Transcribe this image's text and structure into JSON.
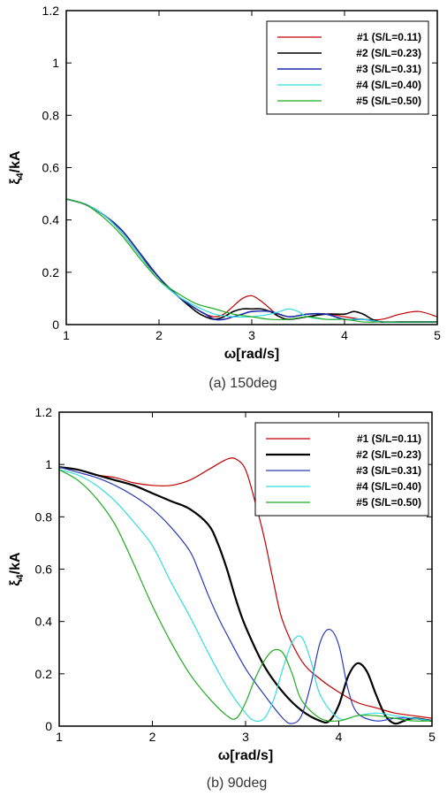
{
  "chart_data": [
    {
      "type": "line",
      "caption": "(a) 150deg",
      "xlabel": "ω[rad/s]",
      "ylabel": "ξ4/kA",
      "xlim": [
        1,
        5
      ],
      "ylim": [
        0,
        1.2
      ],
      "xticks": [
        "1",
        "2",
        "3",
        "4",
        "5"
      ],
      "yticks": [
        "0",
        "0.2",
        "0.4",
        "0.6",
        "0.8",
        "1",
        "1.2"
      ],
      "grid": false,
      "legend_position": "top-right",
      "series": [
        {
          "name": "#1 (S/L=0.11)",
          "color": "#c00000",
          "width": 1.2,
          "x": [
            1.0,
            1.2,
            1.4,
            1.6,
            1.8,
            2.0,
            2.2,
            2.4,
            2.5,
            2.6,
            2.7,
            2.8,
            2.9,
            3.0,
            3.1,
            3.2,
            3.3,
            3.4,
            3.6,
            3.8,
            4.0,
            4.2,
            4.4,
            4.6,
            4.8,
            5.0
          ],
          "y": [
            0.48,
            0.46,
            0.42,
            0.35,
            0.26,
            0.18,
            0.11,
            0.06,
            0.04,
            0.03,
            0.04,
            0.07,
            0.1,
            0.11,
            0.09,
            0.06,
            0.03,
            0.02,
            0.03,
            0.04,
            0.03,
            0.02,
            0.02,
            0.04,
            0.05,
            0.03
          ]
        },
        {
          "name": "#2 (S/L=0.23)",
          "color": "#000000",
          "width": 1.6,
          "x": [
            1.0,
            1.2,
            1.4,
            1.6,
            1.8,
            2.0,
            2.2,
            2.4,
            2.5,
            2.6,
            2.7,
            2.8,
            2.9,
            3.0,
            3.1,
            3.2,
            3.3,
            3.4,
            3.6,
            3.8,
            4.0,
            4.1,
            4.2,
            4.3,
            4.4,
            4.6,
            4.8,
            5.0
          ],
          "y": [
            0.48,
            0.46,
            0.42,
            0.36,
            0.27,
            0.18,
            0.11,
            0.05,
            0.03,
            0.02,
            0.03,
            0.05,
            0.06,
            0.06,
            0.06,
            0.05,
            0.03,
            0.02,
            0.03,
            0.04,
            0.04,
            0.05,
            0.04,
            0.02,
            0.01,
            0.01,
            0.01,
            0.01
          ]
        },
        {
          "name": "#3 (S/L=0.31)",
          "color": "#1a2aa8",
          "width": 1.6,
          "x": [
            1.0,
            1.2,
            1.4,
            1.6,
            1.8,
            2.0,
            2.2,
            2.4,
            2.5,
            2.6,
            2.7,
            2.8,
            2.9,
            3.0,
            3.2,
            3.4,
            3.6,
            3.8,
            4.0,
            4.2,
            4.4,
            4.6,
            4.8,
            5.0
          ],
          "y": [
            0.48,
            0.46,
            0.42,
            0.36,
            0.27,
            0.18,
            0.11,
            0.06,
            0.04,
            0.02,
            0.02,
            0.03,
            0.04,
            0.05,
            0.05,
            0.03,
            0.04,
            0.04,
            0.02,
            0.02,
            0.01,
            0.01,
            0.01,
            0.01
          ]
        },
        {
          "name": "#4 (S/L=0.40)",
          "color": "#33dddd",
          "width": 1.2,
          "x": [
            1.0,
            1.2,
            1.4,
            1.6,
            1.8,
            2.0,
            2.2,
            2.4,
            2.6,
            2.8,
            3.0,
            3.2,
            3.3,
            3.4,
            3.5,
            3.6,
            3.8,
            4.0,
            4.2,
            4.4,
            4.6,
            4.8,
            5.0
          ],
          "y": [
            0.48,
            0.46,
            0.42,
            0.35,
            0.26,
            0.17,
            0.11,
            0.07,
            0.04,
            0.03,
            0.03,
            0.04,
            0.05,
            0.06,
            0.05,
            0.03,
            0.02,
            0.02,
            0.02,
            0.01,
            0.01,
            0.01,
            0.01
          ]
        },
        {
          "name": "#5 (S/L=0.50)",
          "color": "#22aa22",
          "width": 1.2,
          "x": [
            1.0,
            1.2,
            1.4,
            1.6,
            1.8,
            2.0,
            2.2,
            2.4,
            2.6,
            2.8,
            3.0,
            3.2,
            3.4,
            3.6,
            3.8,
            4.0,
            4.2,
            4.4,
            4.6,
            4.8,
            5.0
          ],
          "y": [
            0.48,
            0.46,
            0.41,
            0.34,
            0.25,
            0.17,
            0.12,
            0.08,
            0.06,
            0.04,
            0.03,
            0.02,
            0.02,
            0.03,
            0.02,
            0.02,
            0.01,
            0.01,
            0.01,
            0.01,
            0.01
          ]
        }
      ]
    },
    {
      "type": "line",
      "caption": "(b) 90deg",
      "xlabel": "ω[rad/s]",
      "ylabel": "ξ4/kA",
      "xlim": [
        1,
        5
      ],
      "ylim": [
        0,
        1.2
      ],
      "xticks": [
        "1",
        "2",
        "3",
        "4",
        "5"
      ],
      "yticks": [
        "0",
        "0.2",
        "0.4",
        "0.6",
        "0.8",
        "1",
        "1.2"
      ],
      "grid": false,
      "legend_position": "top-right",
      "series": [
        {
          "name": "#1 (S/L=0.11)",
          "color": "#c00000",
          "width": 1.2,
          "x": [
            1.0,
            1.2,
            1.4,
            1.6,
            1.8,
            2.0,
            2.2,
            2.4,
            2.6,
            2.8,
            2.9,
            3.0,
            3.1,
            3.2,
            3.3,
            3.4,
            3.6,
            3.8,
            4.0,
            4.2,
            4.4,
            4.6,
            4.8,
            5.0
          ],
          "y": [
            0.99,
            0.98,
            0.96,
            0.95,
            0.93,
            0.92,
            0.92,
            0.94,
            0.98,
            1.02,
            1.02,
            0.98,
            0.86,
            0.72,
            0.55,
            0.4,
            0.25,
            0.18,
            0.13,
            0.09,
            0.07,
            0.05,
            0.04,
            0.03
          ]
        },
        {
          "name": "#2 (S/L=0.23)",
          "color": "#000000",
          "width": 2.2,
          "x": [
            1.0,
            1.2,
            1.4,
            1.6,
            1.8,
            2.0,
            2.2,
            2.4,
            2.6,
            2.7,
            2.8,
            2.9,
            3.0,
            3.2,
            3.4,
            3.6,
            3.8,
            3.9,
            4.0,
            4.1,
            4.2,
            4.3,
            4.4,
            4.5,
            4.6,
            4.7,
            4.8,
            5.0
          ],
          "y": [
            0.99,
            0.98,
            0.96,
            0.94,
            0.92,
            0.89,
            0.86,
            0.83,
            0.77,
            0.7,
            0.6,
            0.48,
            0.38,
            0.23,
            0.13,
            0.06,
            0.02,
            0.02,
            0.08,
            0.19,
            0.24,
            0.21,
            0.12,
            0.04,
            0.01,
            0.02,
            0.03,
            0.02
          ]
        },
        {
          "name": "#3 (S/L=0.31)",
          "color": "#2a3ab8",
          "width": 1.2,
          "x": [
            1.0,
            1.2,
            1.4,
            1.6,
            1.8,
            2.0,
            2.2,
            2.4,
            2.5,
            2.6,
            2.7,
            2.8,
            3.0,
            3.2,
            3.4,
            3.5,
            3.6,
            3.7,
            3.8,
            3.9,
            4.0,
            4.1,
            4.2,
            4.4,
            4.6,
            4.8,
            5.0
          ],
          "y": [
            0.99,
            0.97,
            0.95,
            0.92,
            0.88,
            0.83,
            0.76,
            0.67,
            0.59,
            0.5,
            0.42,
            0.35,
            0.22,
            0.12,
            0.03,
            0.01,
            0.04,
            0.16,
            0.32,
            0.37,
            0.31,
            0.14,
            0.05,
            0.02,
            0.03,
            0.03,
            0.02
          ]
        },
        {
          "name": "#4 (S/L=0.40)",
          "color": "#33dddd",
          "width": 1.2,
          "x": [
            1.0,
            1.2,
            1.4,
            1.6,
            1.8,
            2.0,
            2.2,
            2.4,
            2.6,
            2.8,
            3.0,
            3.1,
            3.2,
            3.3,
            3.4,
            3.5,
            3.6,
            3.7,
            3.8,
            4.0,
            4.2,
            4.4,
            4.6,
            4.8,
            5.0
          ],
          "y": [
            0.98,
            0.96,
            0.92,
            0.86,
            0.78,
            0.69,
            0.55,
            0.42,
            0.28,
            0.15,
            0.05,
            0.02,
            0.03,
            0.1,
            0.22,
            0.32,
            0.34,
            0.25,
            0.12,
            0.03,
            0.04,
            0.05,
            0.04,
            0.03,
            0.02
          ]
        },
        {
          "name": "#5 (S/L=0.50)",
          "color": "#22aa22",
          "width": 1.2,
          "x": [
            1.0,
            1.2,
            1.4,
            1.6,
            1.8,
            2.0,
            2.2,
            2.4,
            2.6,
            2.8,
            2.9,
            3.0,
            3.1,
            3.2,
            3.3,
            3.4,
            3.5,
            3.6,
            3.8,
            4.0,
            4.2,
            4.4,
            4.6,
            4.8,
            5.0
          ],
          "y": [
            0.98,
            0.94,
            0.87,
            0.77,
            0.62,
            0.46,
            0.32,
            0.2,
            0.11,
            0.04,
            0.03,
            0.09,
            0.18,
            0.25,
            0.29,
            0.28,
            0.2,
            0.1,
            0.03,
            0.02,
            0.04,
            0.04,
            0.03,
            0.02,
            0.02
          ]
        }
      ]
    }
  ]
}
